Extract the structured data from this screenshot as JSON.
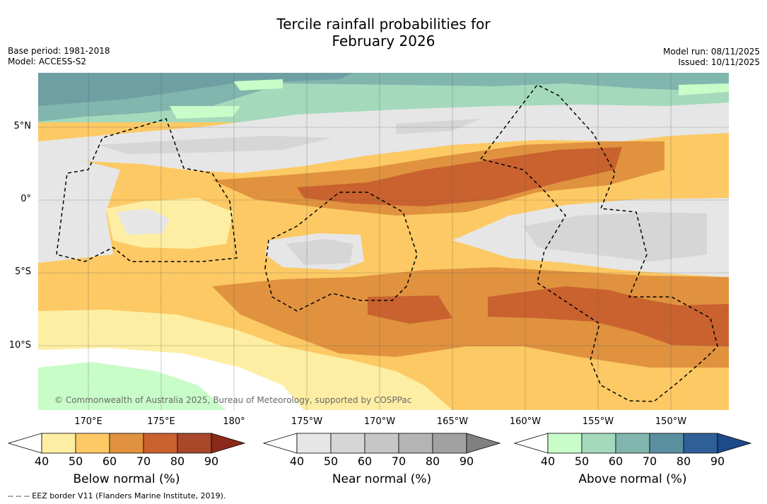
{
  "title": {
    "line1": "Tercile rainfall probabilities for",
    "line2": "February 2026"
  },
  "meta": {
    "base_period": "Base period: 1981-2018",
    "model": "Model: ACCESS-S2",
    "model_run": "Model run: 08/11/2025",
    "issued": "Issued: 10/11/2025"
  },
  "map": {
    "lat_labels": [
      "5°N",
      "0°",
      "5°S",
      "10°S"
    ],
    "lon_labels": [
      "170°E",
      "175°E",
      "180°",
      "175°W",
      "170°W",
      "165°W",
      "160°W",
      "155°W",
      "150°W"
    ],
    "credit": "© Commonwealth of Australia 2025, Bureau of Meteorology, supported by COSPPac"
  },
  "colorbars": {
    "below": {
      "title": "Below normal (%)",
      "ticks": [
        "40",
        "50",
        "60",
        "70",
        "80",
        "90"
      ],
      "colors": [
        "#ffffff",
        "#fdeea3",
        "#fcc964",
        "#e0923f",
        "#c9622e",
        "#a8472a",
        "#8b2a1a"
      ]
    },
    "near": {
      "title": "Near normal (%)",
      "ticks": [
        "40",
        "50",
        "60",
        "70",
        "80",
        "90"
      ],
      "colors": [
        "#ffffff",
        "#e6e6e6",
        "#d6d6d6",
        "#c6c6c6",
        "#b4b4b4",
        "#a2a2a2",
        "#808080"
      ]
    },
    "above": {
      "title": "Above normal (%)",
      "ticks": [
        "40",
        "50",
        "60",
        "70",
        "80",
        "90"
      ],
      "colors": [
        "#ffffff",
        "#c8fcc8",
        "#a4d9bc",
        "#80b6ad",
        "#5a8fa0",
        "#2e5f97",
        "#1d4a88"
      ]
    }
  },
  "footer": "--  --  -- EEZ border V11 (Flanders Marine Institute, 2019)."
}
